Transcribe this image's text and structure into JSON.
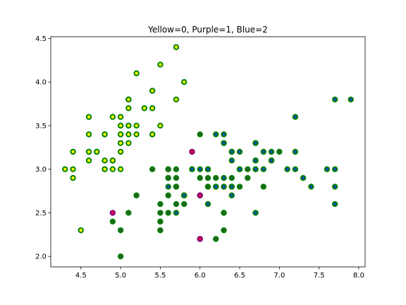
{
  "chart_data": {
    "type": "scatter",
    "title": "Yellow=0, Purple=1, Blue=2",
    "xlabel": "",
    "ylabel": "",
    "xlim": [
      4.12,
      8.08
    ],
    "ylim": [
      1.88,
      4.52
    ],
    "xticks": [
      "4.5",
      "5.0",
      "5.5",
      "6.0",
      "6.5",
      "7.0",
      "7.5",
      "8.0"
    ],
    "yticks": [
      "2.0",
      "2.5",
      "3.0",
      "3.5",
      "4.0",
      "4.5"
    ],
    "grid": false,
    "series": [
      {
        "fill": "#FFFF00",
        "edge": "#008000",
        "points": [
          [
            5.1,
            3.5
          ],
          [
            4.9,
            3.0
          ],
          [
            4.7,
            3.2
          ],
          [
            4.6,
            3.1
          ],
          [
            5.0,
            3.6
          ],
          [
            5.4,
            3.9
          ],
          [
            4.6,
            3.4
          ],
          [
            5.0,
            3.4
          ],
          [
            4.4,
            2.9
          ],
          [
            4.9,
            3.1
          ],
          [
            5.4,
            3.7
          ],
          [
            4.8,
            3.4
          ],
          [
            4.8,
            3.0
          ],
          [
            4.3,
            3.0
          ],
          [
            5.8,
            4.0
          ],
          [
            5.7,
            4.4
          ],
          [
            5.4,
            3.9
          ],
          [
            5.1,
            3.5
          ],
          [
            5.7,
            3.8
          ],
          [
            5.1,
            3.8
          ],
          [
            5.4,
            3.4
          ],
          [
            5.1,
            3.7
          ],
          [
            4.6,
            3.6
          ],
          [
            5.1,
            3.3
          ],
          [
            4.8,
            3.4
          ],
          [
            5.0,
            3.0
          ],
          [
            5.0,
            3.4
          ],
          [
            5.2,
            3.5
          ],
          [
            5.2,
            3.4
          ],
          [
            4.7,
            3.2
          ],
          [
            4.8,
            3.1
          ],
          [
            5.4,
            3.4
          ],
          [
            5.2,
            4.1
          ],
          [
            5.5,
            4.2
          ],
          [
            4.9,
            3.1
          ],
          [
            5.0,
            3.2
          ],
          [
            5.5,
            3.5
          ],
          [
            4.9,
            3.6
          ],
          [
            4.4,
            3.0
          ],
          [
            5.1,
            3.4
          ],
          [
            5.0,
            3.5
          ],
          [
            4.5,
            2.3
          ],
          [
            4.4,
            3.2
          ],
          [
            5.0,
            3.5
          ],
          [
            5.1,
            3.8
          ],
          [
            4.8,
            3.0
          ],
          [
            5.1,
            3.8
          ],
          [
            4.6,
            3.2
          ],
          [
            5.3,
            3.7
          ],
          [
            5.0,
            3.3
          ]
        ]
      },
      {
        "fill": "#2E5E2E",
        "edge": "#008000",
        "points": [
          [
            7.0,
            3.2
          ],
          [
            6.4,
            3.2
          ],
          [
            6.9,
            3.1
          ],
          [
            5.5,
            2.3
          ],
          [
            6.5,
            2.8
          ],
          [
            5.7,
            2.8
          ],
          [
            6.3,
            3.3
          ],
          [
            6.6,
            2.9
          ],
          [
            5.2,
            2.7
          ],
          [
            5.0,
            2.0
          ],
          [
            5.9,
            3.0
          ],
          [
            6.1,
            2.9
          ],
          [
            5.6,
            2.9
          ],
          [
            6.7,
            3.1
          ],
          [
            5.6,
            3.0
          ],
          [
            5.8,
            2.7
          ],
          [
            6.2,
            2.2
          ],
          [
            5.6,
            2.5
          ],
          [
            6.1,
            2.8
          ],
          [
            6.3,
            2.5
          ],
          [
            6.1,
            2.8
          ],
          [
            6.4,
            2.9
          ],
          [
            6.6,
            3.0
          ],
          [
            6.8,
            2.8
          ],
          [
            6.7,
            3.0
          ],
          [
            5.7,
            2.6
          ],
          [
            5.5,
            2.4
          ],
          [
            5.5,
            2.4
          ],
          [
            5.8,
            2.7
          ],
          [
            6.0,
            2.7
          ],
          [
            5.4,
            3.0
          ],
          [
            6.0,
            3.4
          ],
          [
            6.7,
            3.1
          ],
          [
            6.3,
            2.3
          ],
          [
            5.6,
            3.0
          ],
          [
            5.5,
            2.5
          ],
          [
            5.5,
            2.6
          ],
          [
            6.1,
            3.0
          ],
          [
            5.8,
            2.6
          ],
          [
            5.0,
            2.3
          ],
          [
            5.6,
            2.7
          ],
          [
            5.7,
            3.0
          ],
          [
            5.7,
            2.9
          ],
          [
            6.2,
            2.9
          ],
          [
            5.1,
            2.5
          ],
          [
            5.7,
            2.8
          ],
          [
            4.9,
            2.4
          ],
          [
            6.0,
            2.9
          ],
          [
            6.0,
            2.2
          ],
          [
            5.6,
            2.9
          ],
          [
            6.3,
            2.9
          ],
          [
            6.5,
            3.0
          ],
          [
            5.8,
            2.7
          ],
          [
            6.3,
            2.5
          ],
          [
            6.4,
            2.8
          ],
          [
            6.2,
            2.8
          ],
          [
            6.1,
            3.0
          ]
        ]
      },
      {
        "fill": "#E8003A",
        "edge": "#800080",
        "points": [
          [
            4.9,
            2.5
          ],
          [
            5.9,
            3.2
          ],
          [
            6.0,
            2.2
          ],
          [
            6.0,
            2.7
          ],
          [
            6.3,
            2.8
          ]
        ]
      },
      {
        "fill": "#0A4FB4",
        "edge": "#008000",
        "points": [
          [
            6.3,
            3.3
          ],
          [
            5.8,
            2.7
          ],
          [
            7.1,
            3.0
          ],
          [
            6.3,
            2.9
          ],
          [
            6.5,
            3.0
          ],
          [
            7.6,
            3.0
          ],
          [
            7.3,
            2.9
          ],
          [
            6.7,
            2.5
          ],
          [
            7.2,
            3.6
          ],
          [
            6.5,
            3.2
          ],
          [
            6.4,
            2.7
          ],
          [
            6.8,
            3.0
          ],
          [
            5.7,
            2.5
          ],
          [
            6.4,
            3.2
          ],
          [
            7.7,
            3.8
          ],
          [
            7.7,
            2.6
          ],
          [
            6.9,
            3.2
          ],
          [
            5.6,
            2.8
          ],
          [
            7.7,
            2.8
          ],
          [
            6.7,
            3.3
          ],
          [
            7.2,
            3.2
          ],
          [
            6.2,
            2.8
          ],
          [
            6.4,
            2.8
          ],
          [
            7.2,
            3.0
          ],
          [
            7.4,
            2.8
          ],
          [
            7.9,
            3.8
          ],
          [
            6.3,
            2.8
          ],
          [
            6.1,
            2.6
          ],
          [
            7.7,
            3.0
          ],
          [
            6.3,
            3.4
          ],
          [
            6.0,
            3.0
          ],
          [
            6.9,
            3.1
          ],
          [
            6.7,
            3.1
          ],
          [
            6.9,
            3.1
          ],
          [
            6.8,
            3.2
          ],
          [
            6.7,
            3.3
          ],
          [
            6.7,
            3.0
          ],
          [
            6.5,
            3.0
          ],
          [
            6.2,
            3.4
          ],
          [
            5.9,
            3.0
          ],
          [
            6.1,
            3.0
          ],
          [
            6.4,
            3.1
          ],
          [
            6.4,
            2.8
          ]
        ]
      }
    ]
  }
}
